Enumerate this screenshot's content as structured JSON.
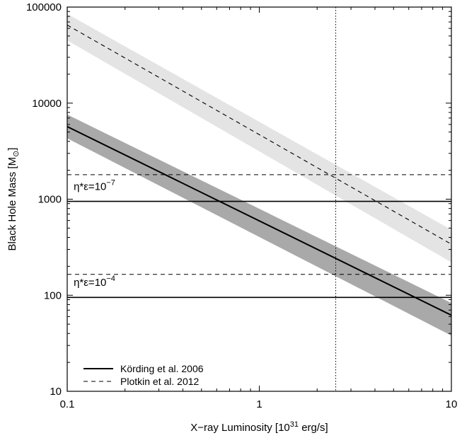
{
  "chart_data": {
    "type": "line",
    "title": "",
    "xlabel": "X−ray Luminosity [10",
    "xlabel_sup": "31",
    "xlabel_tail": " erg/s]",
    "ylabel": "Black Hole Mass [M",
    "ylabel_sub": "⊙",
    "ylabel_tail": "]",
    "x_scale": "log",
    "y_scale": "log",
    "xlim": [
      0.1,
      10
    ],
    "ylim": [
      10,
      100000
    ],
    "x_ticks": [
      0.1,
      1,
      10
    ],
    "x_tick_labels": [
      "0.1",
      "1",
      "10"
    ],
    "y_ticks": [
      10,
      100,
      1000,
      10000,
      100000
    ],
    "y_tick_labels": [
      "10",
      "100",
      "1000",
      "10000",
      "100000"
    ],
    "grid": false,
    "legend_position": "bottom-left",
    "bands": [
      {
        "series": "Körding et al. 2006",
        "color": "#a9a9a9",
        "x": [
          0.1,
          10
        ],
        "upper": [
          7600,
          83
        ],
        "lower": [
          4300,
          38
        ]
      },
      {
        "series": "Plotkin et al. 2012",
        "color": "#e4e4e4",
        "x": [
          0.1,
          10
        ],
        "upper": [
          85000,
          480
        ],
        "lower": [
          45000,
          220
        ]
      }
    ],
    "series": [
      {
        "name": "Körding et al. 2006",
        "style": "solid",
        "color": "#000000",
        "x": [
          0.1,
          10
        ],
        "y": [
          5700,
          62
        ]
      },
      {
        "name": "Plotkin et al. 2012",
        "style": "dashed",
        "color": "#000000",
        "x": [
          0.1,
          10
        ],
        "y": [
          65000,
          340
        ]
      }
    ],
    "hlines": [
      {
        "y": 950,
        "style": "solid"
      },
      {
        "y": 1800,
        "style": "dashed"
      },
      {
        "y": 95,
        "style": "solid"
      },
      {
        "y": 165,
        "style": "dashed"
      }
    ],
    "vline": {
      "x": 2.5,
      "style": "dotted"
    },
    "annotations": [
      {
        "text": "η*ε=10",
        "exponent": "−7",
        "x": 0.108,
        "y": 1250
      },
      {
        "text": "η*ε=10",
        "exponent": "−4",
        "x": 0.108,
        "y": 125
      }
    ]
  }
}
